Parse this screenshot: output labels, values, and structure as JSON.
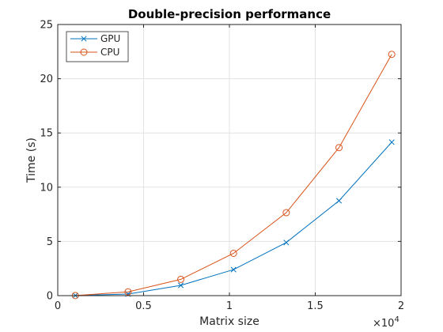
{
  "chart_data": {
    "type": "line",
    "title": "Double-precision performance",
    "xlabel": "Matrix size",
    "ylabel": "Time (s)",
    "x_multiplier_label": "×10",
    "x_multiplier_exponent": "4",
    "xlim": [
      0,
      20000
    ],
    "ylim": [
      0,
      25
    ],
    "x_ticks": [
      0,
      5000,
      10000,
      15000,
      20000
    ],
    "x_tick_labels": [
      "0",
      "0.5",
      "1",
      "1.5",
      "2"
    ],
    "y_ticks": [
      0,
      5,
      10,
      15,
      20,
      25
    ],
    "y_tick_labels": [
      "0",
      "5",
      "10",
      "15",
      "20",
      "25"
    ],
    "grid": true,
    "legend_position": "top-left",
    "x": [
      1024,
      4096,
      7168,
      10240,
      13312,
      16384,
      19456
    ],
    "series": [
      {
        "name": "GPU",
        "marker": "x",
        "color": "#0072bd",
        "values": [
          0.01,
          0.15,
          0.95,
          2.4,
          4.9,
          8.75,
          14.15
        ]
      },
      {
        "name": "CPU",
        "marker": "o",
        "color": "#d95319",
        "values": [
          0.01,
          0.35,
          1.5,
          3.9,
          7.65,
          13.65,
          22.25
        ]
      }
    ]
  }
}
